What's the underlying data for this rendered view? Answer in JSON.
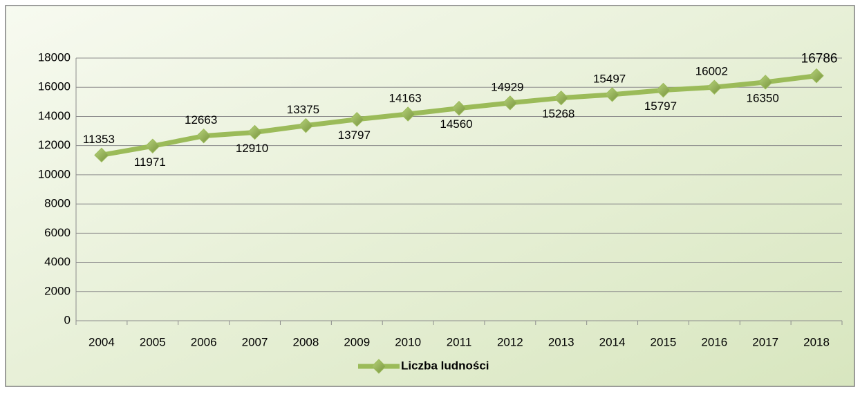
{
  "chart_data": {
    "type": "line",
    "categories": [
      "2004",
      "2005",
      "2006",
      "2007",
      "2008",
      "2009",
      "2010",
      "2011",
      "2012",
      "2013",
      "2014",
      "2015",
      "2016",
      "2017",
      "2018"
    ],
    "series": [
      {
        "name": "Liczba ludności",
        "color": "#9bbb59",
        "values": [
          11353,
          11971,
          12663,
          12910,
          13375,
          13797,
          14163,
          14560,
          14929,
          15268,
          15497,
          15797,
          16002,
          16350,
          16786
        ]
      }
    ],
    "ylim": [
      0,
      18000
    ],
    "yticks": [
      0,
      2000,
      4000,
      6000,
      8000,
      10000,
      12000,
      14000,
      16000,
      18000
    ],
    "grid": true,
    "legend": "bottom"
  }
}
